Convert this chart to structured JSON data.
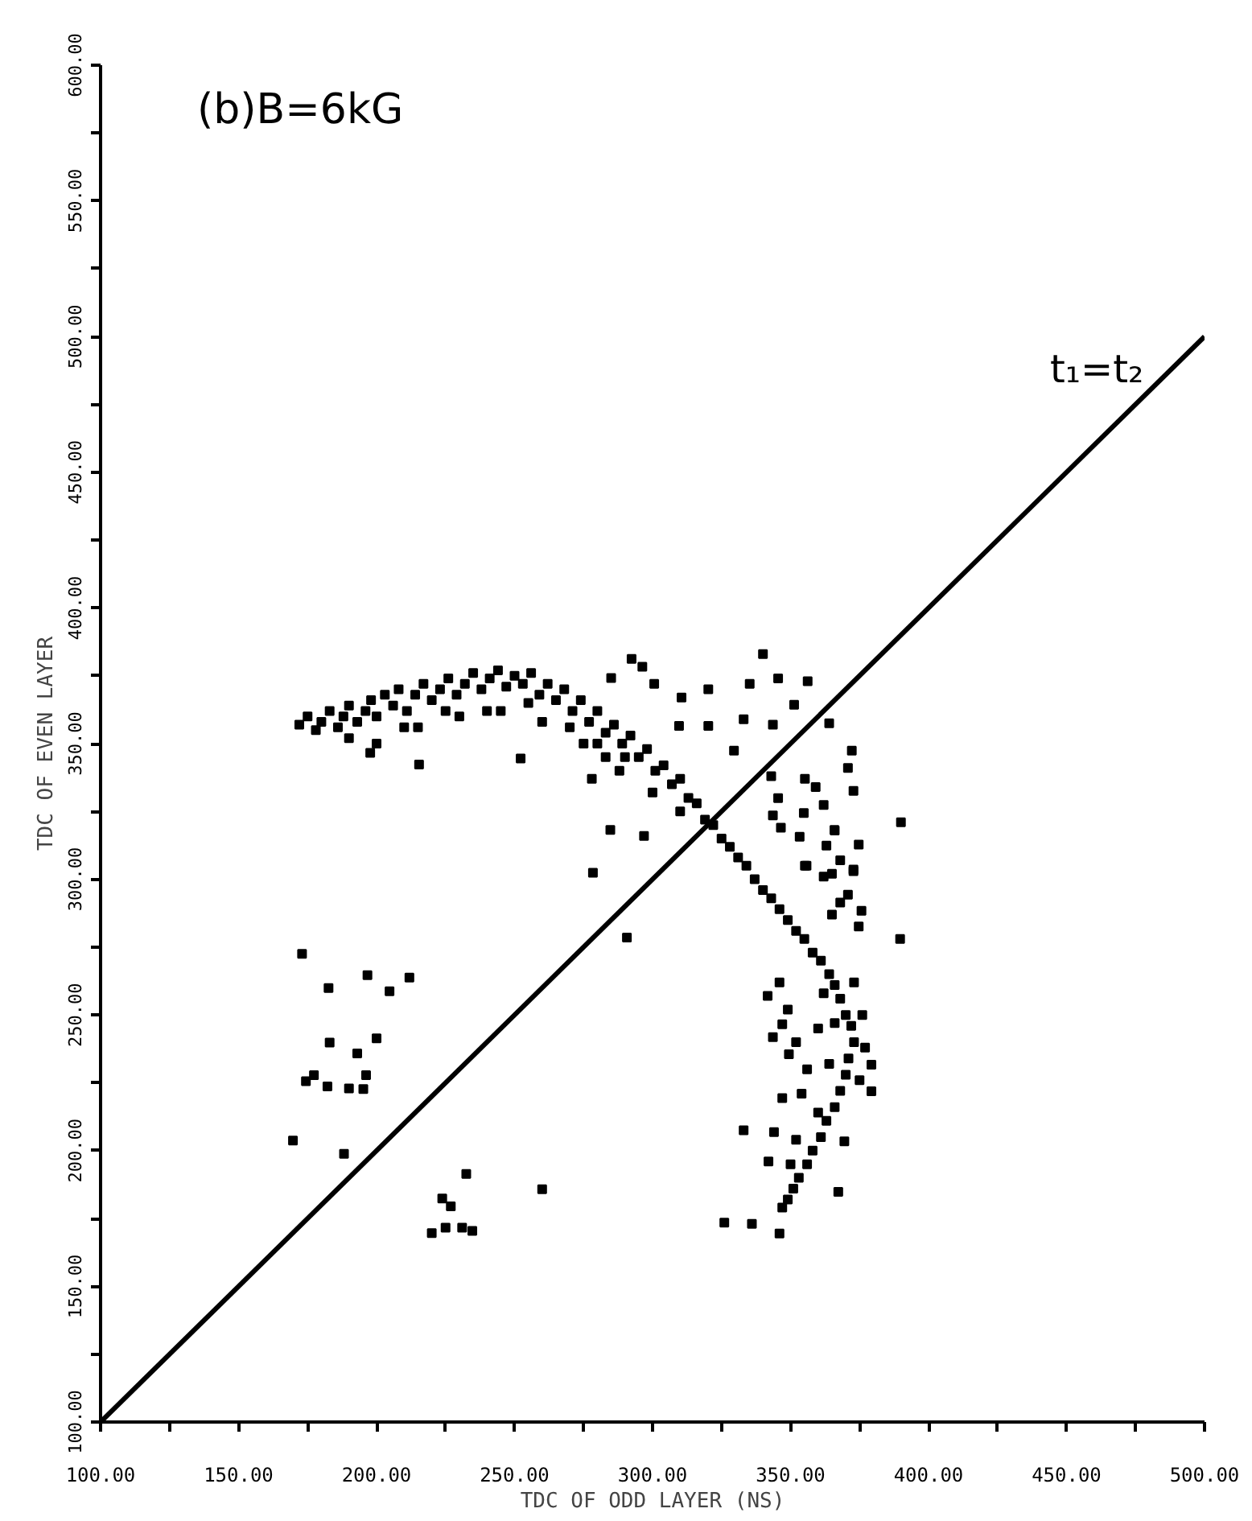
{
  "chart_data": {
    "type": "scatter",
    "xlabel": "TDC OF ODD LAYER (NS)",
    "ylabel": "TDC OF EVEN LAYER",
    "annotations": [
      "(b)B=6kG",
      "t₁=t₂"
    ],
    "xlim": [
      100,
      500
    ],
    "ylim": [
      100,
      600
    ],
    "xticks": [
      {
        "value": 100,
        "label": "100.00"
      },
      {
        "value": 125,
        "label": null
      },
      {
        "value": 150,
        "label": "150.00"
      },
      {
        "value": 175,
        "label": null
      },
      {
        "value": 200,
        "label": "200.00"
      },
      {
        "value": 225,
        "label": null
      },
      {
        "value": 250,
        "label": "250.00"
      },
      {
        "value": 275,
        "label": null
      },
      {
        "value": 300,
        "label": "300.00"
      },
      {
        "value": 325,
        "label": null
      },
      {
        "value": 350,
        "label": "350.00"
      },
      {
        "value": 375,
        "label": null
      },
      {
        "value": 400,
        "label": "400.00"
      },
      {
        "value": 425,
        "label": null
      },
      {
        "value": 450,
        "label": "450.00"
      },
      {
        "value": 475,
        "label": null
      },
      {
        "value": 500,
        "label": "500.00"
      }
    ],
    "yticks": [
      {
        "value": 100,
        "label": "100.00"
      },
      {
        "value": 125,
        "label": null
      },
      {
        "value": 150,
        "label": "150.00"
      },
      {
        "value": 175,
        "label": null
      },
      {
        "value": 200,
        "label": "200.00"
      },
      {
        "value": 225,
        "label": null
      },
      {
        "value": 250,
        "label": "250.00"
      },
      {
        "value": 275,
        "label": null
      },
      {
        "value": 300,
        "label": "300.00"
      },
      {
        "value": 325,
        "label": null
      },
      {
        "value": 350,
        "label": "350.00"
      },
      {
        "value": 375,
        "label": null
      },
      {
        "value": 400,
        "label": "400.00"
      },
      {
        "value": 425,
        "label": null
      },
      {
        "value": 450,
        "label": "450.00"
      },
      {
        "value": 475,
        "label": null
      },
      {
        "value": 500,
        "label": "500.00"
      },
      {
        "value": 525,
        "label": null
      },
      {
        "value": 550,
        "label": "550.00"
      },
      {
        "value": 575,
        "label": null
      },
      {
        "value": 600,
        "label": "600.00"
      }
    ],
    "grid": false,
    "series": [
      {
        "type": "line",
        "color": "#000000",
        "line_style": "solid",
        "x": [
          100,
          500
        ],
        "values": [
          100,
          500
        ]
      },
      {
        "color": "#000000",
        "marker": "square",
        "x": [
          172,
          175,
          178,
          180,
          183,
          186,
          188,
          190,
          193,
          196,
          198,
          200,
          203,
          206,
          208,
          211,
          214,
          217,
          220,
          223,
          226,
          229,
          232,
          235,
          238,
          241,
          244,
          247,
          250,
          253,
          256,
          259,
          262,
          265,
          268,
          271,
          274,
          277,
          280,
          283,
          286,
          289,
          292,
          295,
          298,
          301,
          304,
          307,
          310,
          313,
          316,
          319,
          322,
          325,
          328,
          331,
          334,
          337,
          340,
          343,
          346,
          349,
          352,
          355,
          358,
          361,
          364,
          366,
          368,
          370,
          372,
          373,
          371,
          370,
          368,
          366,
          363,
          361,
          358,
          356,
          353,
          351,
          349,
          347,
          346,
          349,
          352,
          356,
          360,
          352,
          350,
          342,
          360,
          364,
          366,
          362,
          373,
          376,
          377,
          375,
          215,
          230,
          245,
          260,
          270,
          255,
          240,
          225,
          210,
          190,
          200,
          280,
          283,
          275,
          290,
          300,
          310,
          288,
          173,
          196.7,
          182.6,
          204.7,
          211.9,
          183,
          200,
          193,
          196.2,
          177.3,
          174.4,
          182.2,
          190,
          195.2,
          169.7,
          188.2,
          232.5,
          260,
          223.8,
          226.9,
          220,
          225,
          231,
          234.7,
          390,
          389.7,
          326,
          336,
          346,
          292.4,
          296.3,
          285,
          300.6,
          335.2,
          345.5,
          356.2,
          340,
          320.2,
          310.5,
          333,
          351.3,
          364,
          320.2,
          309.6,
          343.6,
          329.5,
          372.2,
          343,
          370.8,
          355.2,
          359.1,
          372.8,
          345.5,
          362,
          343.6,
          346.5,
          366,
          374.7,
          353.3,
          363,
          368,
          355.2,
          365,
          372.8,
          370.8,
          375.7,
          365,
          284.7,
          296.9,
          278.4,
          290.7,
          278,
          197.7,
          215.4,
          252.2,
          354.8,
          365.9,
          355.8,
          372.8,
          362,
          368,
          374.7,
          341.7,
          343.6,
          347,
          349.4,
          347,
          354,
          333,
          344,
          367.3,
          369.5,
          379.3,
          379.3
        ],
        "values": [
          357,
          360,
          355,
          358,
          362,
          356,
          360,
          364,
          358,
          362,
          366,
          360,
          368,
          364,
          370,
          362,
          368,
          372,
          366,
          370,
          374,
          368,
          372,
          376,
          370,
          374,
          377,
          371,
          375,
          372,
          376,
          368,
          372,
          366,
          370,
          362,
          366,
          358,
          362,
          354,
          357,
          350,
          353,
          345,
          348,
          340,
          342,
          335,
          337,
          330,
          328,
          322,
          320,
          315,
          312,
          308,
          305,
          300,
          296,
          293,
          289,
          285,
          281,
          278,
          273,
          270,
          265,
          261,
          256,
          250,
          246,
          240,
          234,
          228,
          222,
          216,
          211,
          205,
          200,
          195,
          190,
          186,
          182,
          179,
          262,
          252,
          240,
          230,
          214,
          204,
          195,
          196,
          245,
          232,
          247,
          258,
          262,
          250,
          238,
          226,
          356,
          360,
          362,
          358,
          356,
          365,
          362,
          362,
          356,
          352,
          350,
          350,
          345,
          350,
          345,
          332,
          325,
          340,
          272.5,
          264.7,
          259.9,
          258.7,
          263.8,
          239.8,
          241.4,
          235.8,
          227.8,
          227.8,
          225.6,
          223.7,
          222.9,
          222.7,
          203.7,
          198.8,
          191.4,
          185.8,
          182.4,
          179.5,
          169.6,
          171.6,
          171.6,
          170.4,
          321,
          278,
          173.5,
          173,
          169.5,
          381.2,
          378.3,
          374.2,
          372,
          372,
          374,
          373,
          383,
          370,
          367,
          359,
          364.3,
          357.5,
          356.5,
          356.5,
          357,
          347.4,
          347.4,
          338,
          341,
          337,
          334,
          332.6,
          329.9,
          327.4,
          323.5,
          319,
          318,
          312.8,
          315.7,
          312.4,
          307,
          305,
          302,
          303,
          294.3,
          288.4,
          287,
          318.2,
          316,
          302.4,
          278.5,
          337,
          346.6,
          342.3,
          344.5,
          324.4,
          318.2,
          305,
          303.6,
          301,
          291.4,
          282.6,
          257,
          241.8,
          246.6,
          235.5,
          219.4,
          221,
          207.5,
          206.8,
          184.8,
          203.4,
          221.9,
          231.7
        ]
      }
    ]
  }
}
